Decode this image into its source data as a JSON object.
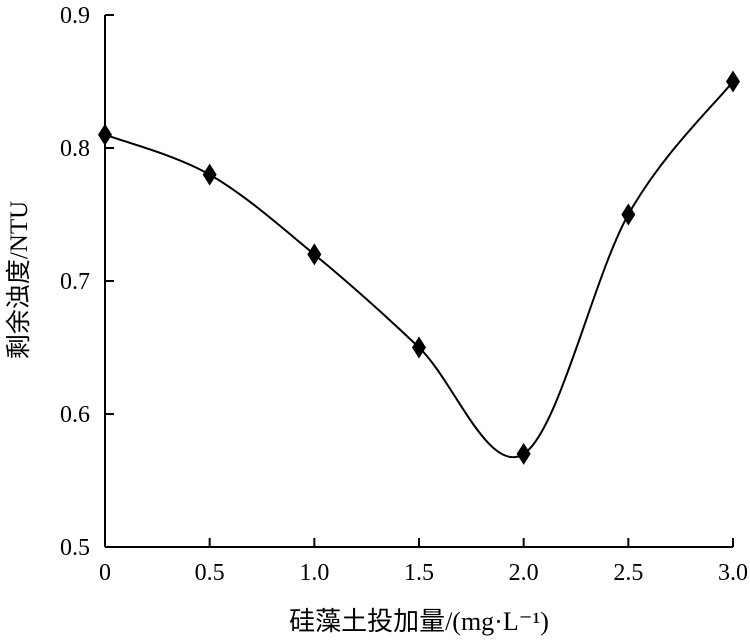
{
  "chart_data": {
    "type": "line",
    "title": "",
    "xlabel": "硅藻土投加量/(mg·L⁻¹)",
    "ylabel": "剩余浊度/NTU",
    "xlim": [
      0,
      3.0
    ],
    "ylim": [
      0.5,
      0.9
    ],
    "xticks": [
      "0",
      "0.5",
      "1.0",
      "1.5",
      "2.0",
      "2.5",
      "3.0"
    ],
    "yticks": [
      "0.5",
      "0.6",
      "0.7",
      "0.8",
      "0.9"
    ],
    "grid": false,
    "marker": "diamond",
    "smooth": true,
    "color": "#000000",
    "x": [
      0,
      0.5,
      1.0,
      1.5,
      2.0,
      2.5,
      3.0
    ],
    "y": [
      0.81,
      0.78,
      0.72,
      0.65,
      0.57,
      0.75,
      0.85
    ]
  }
}
